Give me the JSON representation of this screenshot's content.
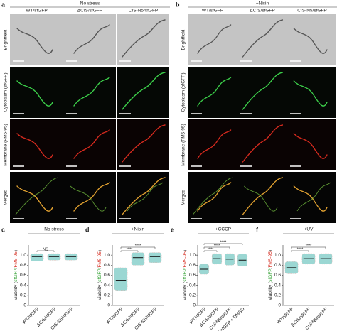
{
  "panel_a": {
    "letter": "a",
    "condition": "No stress",
    "columns": [
      "WT/sfGFP",
      "ΔCIS/sfGFP",
      "CIS-N5/sfGFP"
    ],
    "rows": [
      "Brightfield",
      "Cytoplasm (sfGFP)",
      "Membrane (FM5-95)",
      "Merged"
    ]
  },
  "panel_b": {
    "letter": "b",
    "condition": "+Nisin",
    "columns": [
      "WT/sfGFP",
      "ΔCIS/sfGFP",
      "CIS-N5/sfGFP"
    ],
    "rows": [
      "Brightfield",
      "Cytoplasm (sfGFP)",
      "Membrane (FM5-95)",
      "Merged"
    ]
  },
  "chart_data": [
    {
      "type": "strip",
      "letter": "c",
      "title": "No stress",
      "y_label": [
        "Viability (",
        "sfGFP",
        "/",
        "FM5-95",
        ")"
      ],
      "categories": [
        "WT/sfGFP",
        "ΔCIS/sfGFP",
        "CIS-N5/sfGFP"
      ],
      "means": [
        0.97,
        0.97,
        0.97
      ],
      "ranges": [
        [
          0.88,
          1.03
        ],
        [
          0.9,
          1.03
        ],
        [
          0.9,
          1.03
        ]
      ],
      "ylim": [
        0,
        1.2
      ],
      "yticks": [
        0,
        0.2,
        0.4,
        0.6,
        0.8,
        {
          "value": 1,
          "label": "1.0"
        }
      ],
      "annotations": [
        {
          "groups": [
            0,
            1
          ],
          "label": "NS"
        }
      ]
    },
    {
      "type": "strip",
      "letter": "d",
      "title": "+Nisin",
      "y_label": [
        "Viability (",
        "sfGFP",
        "/",
        "FM5-95",
        ")"
      ],
      "categories": [
        "WT/sfGFP",
        "ΔCIS/sfGFP",
        "CIS-N5/sfGFP"
      ],
      "means": [
        0.5,
        0.95,
        0.97
      ],
      "ranges": [
        [
          0.3,
          0.75
        ],
        [
          0.8,
          1.05
        ],
        [
          0.85,
          1.05
        ]
      ],
      "ylim": [
        0,
        1.2
      ],
      "yticks": [
        0,
        0.2,
        0.4,
        0.6,
        0.8,
        {
          "value": 1,
          "label": "1.0"
        }
      ],
      "annotations": [
        {
          "groups": [
            0,
            1
          ],
          "label": "****"
        },
        {
          "groups": [
            0,
            2
          ],
          "label": "****"
        }
      ]
    },
    {
      "type": "strip",
      "letter": "e",
      "title": "+CCCP",
      "y_label": [
        "Viability (",
        "sfGFP",
        "/",
        "FM5-95",
        ")"
      ],
      "categories": [
        "WT/sfGFP",
        "ΔCIS/sfGFP",
        "CIS-N5/sfGFP",
        "WT/sfGFP + DMSO"
      ],
      "means": [
        0.72,
        0.93,
        0.92,
        0.9
      ],
      "ranges": [
        [
          0.62,
          0.82
        ],
        [
          0.82,
          1.03
        ],
        [
          0.8,
          1.03
        ],
        [
          0.78,
          1.02
        ]
      ],
      "ylim": [
        0,
        1.2
      ],
      "yticks": [
        0,
        0.2,
        0.4,
        0.6,
        0.8,
        {
          "value": 1,
          "label": "1.0"
        }
      ],
      "annotations": [
        {
          "groups": [
            0,
            1
          ],
          "label": "****"
        },
        {
          "groups": [
            0,
            2
          ],
          "label": "****"
        },
        {
          "groups": [
            0,
            3
          ],
          "label": "****"
        }
      ]
    },
    {
      "type": "strip",
      "letter": "f",
      "title": "+UV",
      "y_label": [
        "Viability (",
        "sfGFP",
        "/",
        "FM5-95",
        ")"
      ],
      "categories": [
        "WT/sfGFP",
        "ΔCIS/sfGFP",
        "CIS-N5/sfGFP"
      ],
      "means": [
        0.75,
        0.93,
        0.93
      ],
      "ranges": [
        [
          0.63,
          0.87
        ],
        [
          0.82,
          1.03
        ],
        [
          0.82,
          1.03
        ]
      ],
      "ylim": [
        0,
        1.2
      ],
      "yticks": [
        0,
        0.2,
        0.4,
        0.6,
        0.8,
        {
          "value": 1,
          "label": "1.0"
        }
      ],
      "annotations": [
        {
          "groups": [
            0,
            1
          ],
          "label": "****"
        },
        {
          "groups": [
            0,
            2
          ],
          "label": "****"
        }
      ]
    }
  ]
}
